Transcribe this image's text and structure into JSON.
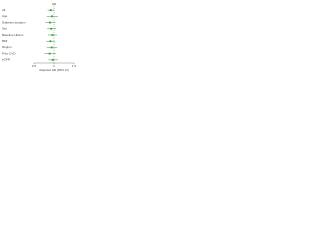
{
  "chart_data": {
    "type": "forest",
    "title": "HR",
    "categories": [
      "All",
      "Age",
      "Diabetes duration",
      "Sex",
      "Baseline HbA1c",
      "BMI",
      "Region",
      "Prior CVD",
      "eGFR"
    ],
    "values": [
      0.92,
      0.95,
      0.9,
      0.93,
      0.96,
      0.91,
      0.94,
      0.89,
      0.97
    ],
    "lower": [
      0.84,
      0.82,
      0.78,
      0.83,
      0.85,
      0.8,
      0.82,
      0.76,
      0.86
    ],
    "upper": [
      1.01,
      1.1,
      1.04,
      1.05,
      1.08,
      1.03,
      1.08,
      1.05,
      1.1
    ],
    "color": "#3a9a3a",
    "xlabel": "Adjusted HR (95% CI)",
    "xlim": [
      0.5,
      1.5
    ],
    "xticks": [
      0.5,
      1,
      1.5
    ],
    "reference": 1
  }
}
